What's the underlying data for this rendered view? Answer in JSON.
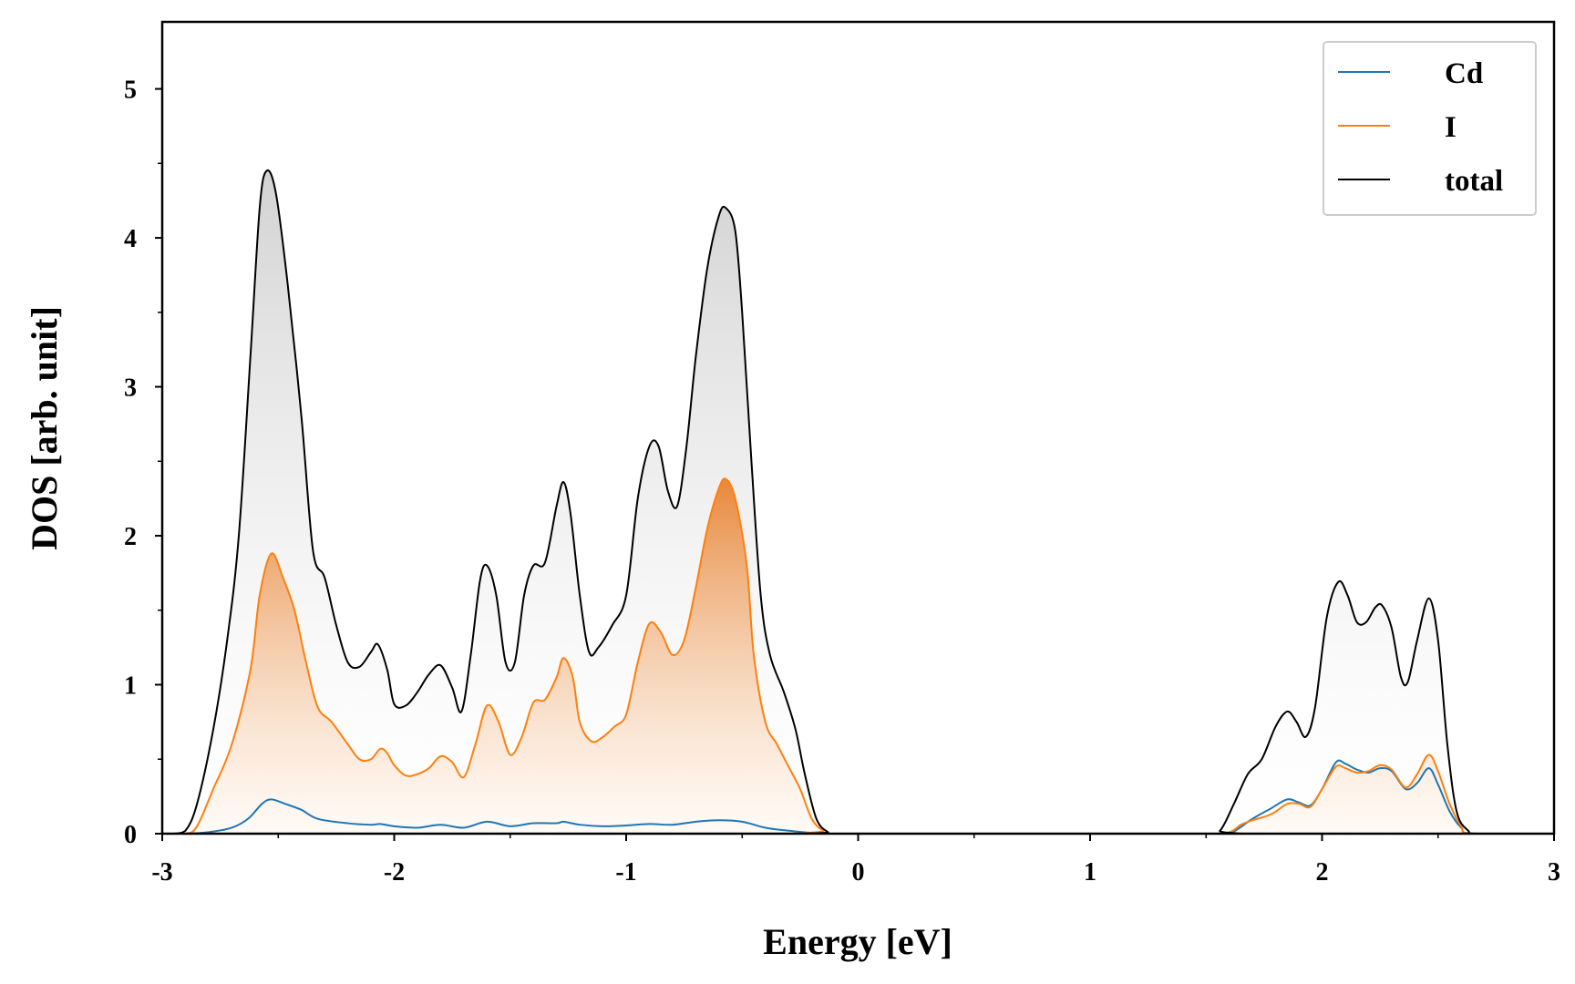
{
  "chart_data": {
    "type": "area",
    "title": "",
    "xlabel": "Energy [eV]",
    "ylabel": "DOS [arb. unit]",
    "xlim": [
      -3,
      3
    ],
    "ylim": [
      0,
      5.45
    ],
    "x_ticks": [
      -3,
      -2,
      -1,
      0,
      1,
      2,
      3
    ],
    "x_tick_labels": [
      "-3",
      "-2",
      "-1",
      "0",
      "1",
      "2",
      "3"
    ],
    "y_ticks": [
      0,
      1,
      2,
      3,
      4,
      5
    ],
    "y_tick_labels": [
      "0",
      "1",
      "2",
      "3",
      "4",
      "5"
    ],
    "grid": false,
    "legend_position": "top-right",
    "series": [
      {
        "name": "Cd",
        "color": "#1f77b4",
        "filled": false,
        "points": [
          [
            -3.0,
            0
          ],
          [
            -2.9,
            0
          ],
          [
            -2.8,
            0.01
          ],
          [
            -2.7,
            0.04
          ],
          [
            -2.63,
            0.1
          ],
          [
            -2.57,
            0.2
          ],
          [
            -2.53,
            0.23
          ],
          [
            -2.47,
            0.2
          ],
          [
            -2.4,
            0.16
          ],
          [
            -2.33,
            0.1
          ],
          [
            -2.2,
            0.07
          ],
          [
            -2.1,
            0.06
          ],
          [
            -2.06,
            0.065
          ],
          [
            -2.0,
            0.05
          ],
          [
            -1.9,
            0.04
          ],
          [
            -1.8,
            0.06
          ],
          [
            -1.7,
            0.04
          ],
          [
            -1.6,
            0.08
          ],
          [
            -1.5,
            0.05
          ],
          [
            -1.4,
            0.07
          ],
          [
            -1.3,
            0.07
          ],
          [
            -1.27,
            0.08
          ],
          [
            -1.2,
            0.06
          ],
          [
            -1.1,
            0.05
          ],
          [
            -1.0,
            0.055
          ],
          [
            -0.9,
            0.065
          ],
          [
            -0.8,
            0.06
          ],
          [
            -0.7,
            0.08
          ],
          [
            -0.6,
            0.09
          ],
          [
            -0.5,
            0.08
          ],
          [
            -0.4,
            0.04
          ],
          [
            -0.3,
            0.02
          ],
          [
            -0.2,
            0.005
          ],
          [
            -0.1,
            0
          ],
          [
            1.5,
            0
          ],
          [
            1.6,
            0
          ],
          [
            1.7,
            0.1
          ],
          [
            1.78,
            0.17
          ],
          [
            1.85,
            0.23
          ],
          [
            1.9,
            0.21
          ],
          [
            1.95,
            0.19
          ],
          [
            2.0,
            0.3
          ],
          [
            2.06,
            0.48
          ],
          [
            2.1,
            0.47
          ],
          [
            2.15,
            0.43
          ],
          [
            2.2,
            0.41
          ],
          [
            2.25,
            0.44
          ],
          [
            2.3,
            0.42
          ],
          [
            2.36,
            0.3
          ],
          [
            2.41,
            0.34
          ],
          [
            2.46,
            0.44
          ],
          [
            2.5,
            0.33
          ],
          [
            2.55,
            0.15
          ],
          [
            2.6,
            0.04
          ],
          [
            2.65,
            0
          ],
          [
            3.0,
            0
          ]
        ]
      },
      {
        "name": "I",
        "color": "#ff7f0e",
        "filled": true,
        "points": [
          [
            -3.0,
            0
          ],
          [
            -2.9,
            0
          ],
          [
            -2.85,
            0.05
          ],
          [
            -2.78,
            0.3
          ],
          [
            -2.7,
            0.6
          ],
          [
            -2.62,
            1.1
          ],
          [
            -2.58,
            1.6
          ],
          [
            -2.53,
            1.88
          ],
          [
            -2.48,
            1.72
          ],
          [
            -2.43,
            1.5
          ],
          [
            -2.38,
            1.15
          ],
          [
            -2.33,
            0.85
          ],
          [
            -2.27,
            0.75
          ],
          [
            -2.2,
            0.6
          ],
          [
            -2.15,
            0.5
          ],
          [
            -2.1,
            0.5
          ],
          [
            -2.06,
            0.57
          ],
          [
            -2.03,
            0.54
          ],
          [
            -2.0,
            0.46
          ],
          [
            -1.95,
            0.39
          ],
          [
            -1.9,
            0.4
          ],
          [
            -1.85,
            0.44
          ],
          [
            -1.8,
            0.52
          ],
          [
            -1.75,
            0.48
          ],
          [
            -1.7,
            0.38
          ],
          [
            -1.65,
            0.6
          ],
          [
            -1.6,
            0.86
          ],
          [
            -1.55,
            0.75
          ],
          [
            -1.5,
            0.53
          ],
          [
            -1.45,
            0.65
          ],
          [
            -1.4,
            0.88
          ],
          [
            -1.35,
            0.9
          ],
          [
            -1.3,
            1.05
          ],
          [
            -1.27,
            1.18
          ],
          [
            -1.23,
            1.05
          ],
          [
            -1.2,
            0.75
          ],
          [
            -1.15,
            0.62
          ],
          [
            -1.1,
            0.65
          ],
          [
            -1.05,
            0.72
          ],
          [
            -1.0,
            0.8
          ],
          [
            -0.95,
            1.15
          ],
          [
            -0.9,
            1.41
          ],
          [
            -0.85,
            1.35
          ],
          [
            -0.8,
            1.2
          ],
          [
            -0.75,
            1.3
          ],
          [
            -0.7,
            1.65
          ],
          [
            -0.65,
            2.05
          ],
          [
            -0.6,
            2.32
          ],
          [
            -0.57,
            2.38
          ],
          [
            -0.53,
            2.25
          ],
          [
            -0.48,
            1.8
          ],
          [
            -0.45,
            1.2
          ],
          [
            -0.4,
            0.75
          ],
          [
            -0.35,
            0.6
          ],
          [
            -0.3,
            0.45
          ],
          [
            -0.25,
            0.3
          ],
          [
            -0.2,
            0.1
          ],
          [
            -0.15,
            0.02
          ],
          [
            -0.1,
            0
          ],
          [
            1.5,
            0
          ],
          [
            1.6,
            0.01
          ],
          [
            1.65,
            0.06
          ],
          [
            1.7,
            0.09
          ],
          [
            1.78,
            0.13
          ],
          [
            1.85,
            0.2
          ],
          [
            1.9,
            0.2
          ],
          [
            1.95,
            0.18
          ],
          [
            2.0,
            0.3
          ],
          [
            2.06,
            0.45
          ],
          [
            2.1,
            0.44
          ],
          [
            2.15,
            0.41
          ],
          [
            2.2,
            0.42
          ],
          [
            2.25,
            0.46
          ],
          [
            2.3,
            0.43
          ],
          [
            2.36,
            0.31
          ],
          [
            2.41,
            0.4
          ],
          [
            2.46,
            0.53
          ],
          [
            2.5,
            0.42
          ],
          [
            2.55,
            0.2
          ],
          [
            2.6,
            0.05
          ],
          [
            2.65,
            0
          ],
          [
            3.0,
            0
          ]
        ]
      },
      {
        "name": "total",
        "color": "#000000",
        "filled": true,
        "points": [
          [
            -3.0,
            0
          ],
          [
            -2.95,
            0
          ],
          [
            -2.9,
            0.02
          ],
          [
            -2.85,
            0.2
          ],
          [
            -2.78,
            0.7
          ],
          [
            -2.72,
            1.3
          ],
          [
            -2.67,
            2.0
          ],
          [
            -2.62,
            3.2
          ],
          [
            -2.58,
            4.2
          ],
          [
            -2.55,
            4.45
          ],
          [
            -2.51,
            4.3
          ],
          [
            -2.46,
            3.7
          ],
          [
            -2.4,
            2.8
          ],
          [
            -2.35,
            1.9
          ],
          [
            -2.3,
            1.72
          ],
          [
            -2.25,
            1.4
          ],
          [
            -2.2,
            1.15
          ],
          [
            -2.15,
            1.12
          ],
          [
            -2.1,
            1.22
          ],
          [
            -2.07,
            1.27
          ],
          [
            -2.03,
            1.1
          ],
          [
            -2.0,
            0.87
          ],
          [
            -1.95,
            0.86
          ],
          [
            -1.9,
            0.95
          ],
          [
            -1.85,
            1.07
          ],
          [
            -1.8,
            1.13
          ],
          [
            -1.75,
            0.98
          ],
          [
            -1.71,
            0.82
          ],
          [
            -1.67,
            1.2
          ],
          [
            -1.63,
            1.7
          ],
          [
            -1.6,
            1.8
          ],
          [
            -1.56,
            1.6
          ],
          [
            -1.52,
            1.15
          ],
          [
            -1.48,
            1.15
          ],
          [
            -1.44,
            1.6
          ],
          [
            -1.4,
            1.8
          ],
          [
            -1.35,
            1.82
          ],
          [
            -1.3,
            2.2
          ],
          [
            -1.27,
            2.36
          ],
          [
            -1.24,
            2.15
          ],
          [
            -1.2,
            1.6
          ],
          [
            -1.16,
            1.22
          ],
          [
            -1.12,
            1.25
          ],
          [
            -1.06,
            1.4
          ],
          [
            -1.0,
            1.6
          ],
          [
            -0.95,
            2.25
          ],
          [
            -0.9,
            2.6
          ],
          [
            -0.86,
            2.6
          ],
          [
            -0.82,
            2.3
          ],
          [
            -0.78,
            2.2
          ],
          [
            -0.74,
            2.6
          ],
          [
            -0.7,
            3.2
          ],
          [
            -0.65,
            3.8
          ],
          [
            -0.6,
            4.15
          ],
          [
            -0.57,
            4.2
          ],
          [
            -0.53,
            4.05
          ],
          [
            -0.5,
            3.5
          ],
          [
            -0.46,
            2.5
          ],
          [
            -0.42,
            1.6
          ],
          [
            -0.38,
            1.2
          ],
          [
            -0.32,
            0.95
          ],
          [
            -0.27,
            0.7
          ],
          [
            -0.23,
            0.4
          ],
          [
            -0.18,
            0.1
          ],
          [
            -0.13,
            0.01
          ],
          [
            -0.1,
            0
          ],
          [
            1.5,
            0
          ],
          [
            1.56,
            0.02
          ],
          [
            1.62,
            0.2
          ],
          [
            1.68,
            0.4
          ],
          [
            1.74,
            0.5
          ],
          [
            1.8,
            0.72
          ],
          [
            1.85,
            0.82
          ],
          [
            1.89,
            0.75
          ],
          [
            1.93,
            0.65
          ],
          [
            1.97,
            0.85
          ],
          [
            2.02,
            1.45
          ],
          [
            2.07,
            1.69
          ],
          [
            2.11,
            1.6
          ],
          [
            2.15,
            1.42
          ],
          [
            2.19,
            1.42
          ],
          [
            2.23,
            1.52
          ],
          [
            2.26,
            1.53
          ],
          [
            2.3,
            1.38
          ],
          [
            2.34,
            1.05
          ],
          [
            2.37,
            1.02
          ],
          [
            2.41,
            1.3
          ],
          [
            2.46,
            1.58
          ],
          [
            2.5,
            1.3
          ],
          [
            2.54,
            0.6
          ],
          [
            2.58,
            0.15
          ],
          [
            2.63,
            0.02
          ],
          [
            2.67,
            0
          ],
          [
            3.0,
            0
          ]
        ]
      }
    ]
  }
}
